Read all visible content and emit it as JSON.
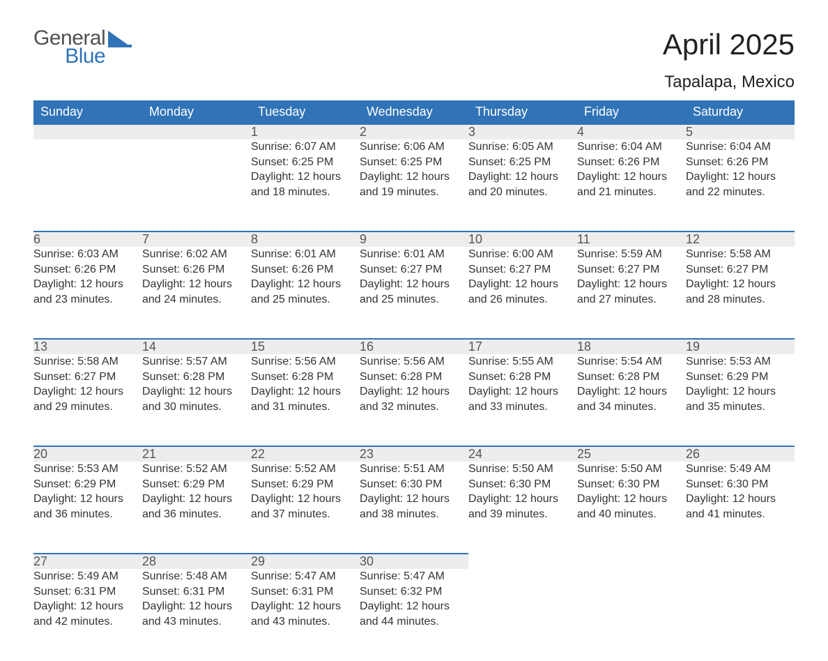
{
  "brand": {
    "name_top": "General",
    "name_bottom": "Blue",
    "text_color": "#505050",
    "accent_color": "#3073b7"
  },
  "title": "April 2025",
  "location": "Tapalapa, Mexico",
  "weekday_headers": [
    "Sunday",
    "Monday",
    "Tuesday",
    "Wednesday",
    "Thursday",
    "Friday",
    "Saturday"
  ],
  "style": {
    "header_bg": "#3073b7",
    "header_text": "#ffffff",
    "daynum_bg": "#ededed",
    "daynum_border": "#3073b7",
    "daynum_text": "#555555",
    "body_text": "#333333",
    "page_bg": "#ffffff",
    "title_fontsize": 42,
    "location_fontsize": 24,
    "header_fontsize": 18,
    "daynum_fontsize": 18,
    "details_fontsize": 16
  },
  "weeks": [
    [
      {
        "day": "",
        "sunrise": "",
        "sunset": "",
        "daylight": ""
      },
      {
        "day": "",
        "sunrise": "",
        "sunset": "",
        "daylight": ""
      },
      {
        "day": "1",
        "sunrise": "Sunrise: 6:07 AM",
        "sunset": "Sunset: 6:25 PM",
        "daylight": "Daylight: 12 hours and 18 minutes."
      },
      {
        "day": "2",
        "sunrise": "Sunrise: 6:06 AM",
        "sunset": "Sunset: 6:25 PM",
        "daylight": "Daylight: 12 hours and 19 minutes."
      },
      {
        "day": "3",
        "sunrise": "Sunrise: 6:05 AM",
        "sunset": "Sunset: 6:25 PM",
        "daylight": "Daylight: 12 hours and 20 minutes."
      },
      {
        "day": "4",
        "sunrise": "Sunrise: 6:04 AM",
        "sunset": "Sunset: 6:26 PM",
        "daylight": "Daylight: 12 hours and 21 minutes."
      },
      {
        "day": "5",
        "sunrise": "Sunrise: 6:04 AM",
        "sunset": "Sunset: 6:26 PM",
        "daylight": "Daylight: 12 hours and 22 minutes."
      }
    ],
    [
      {
        "day": "6",
        "sunrise": "Sunrise: 6:03 AM",
        "sunset": "Sunset: 6:26 PM",
        "daylight": "Daylight: 12 hours and 23 minutes."
      },
      {
        "day": "7",
        "sunrise": "Sunrise: 6:02 AM",
        "sunset": "Sunset: 6:26 PM",
        "daylight": "Daylight: 12 hours and 24 minutes."
      },
      {
        "day": "8",
        "sunrise": "Sunrise: 6:01 AM",
        "sunset": "Sunset: 6:26 PM",
        "daylight": "Daylight: 12 hours and 25 minutes."
      },
      {
        "day": "9",
        "sunrise": "Sunrise: 6:01 AM",
        "sunset": "Sunset: 6:27 PM",
        "daylight": "Daylight: 12 hours and 25 minutes."
      },
      {
        "day": "10",
        "sunrise": "Sunrise: 6:00 AM",
        "sunset": "Sunset: 6:27 PM",
        "daylight": "Daylight: 12 hours and 26 minutes."
      },
      {
        "day": "11",
        "sunrise": "Sunrise: 5:59 AM",
        "sunset": "Sunset: 6:27 PM",
        "daylight": "Daylight: 12 hours and 27 minutes."
      },
      {
        "day": "12",
        "sunrise": "Sunrise: 5:58 AM",
        "sunset": "Sunset: 6:27 PM",
        "daylight": "Daylight: 12 hours and 28 minutes."
      }
    ],
    [
      {
        "day": "13",
        "sunrise": "Sunrise: 5:58 AM",
        "sunset": "Sunset: 6:27 PM",
        "daylight": "Daylight: 12 hours and 29 minutes."
      },
      {
        "day": "14",
        "sunrise": "Sunrise: 5:57 AM",
        "sunset": "Sunset: 6:28 PM",
        "daylight": "Daylight: 12 hours and 30 minutes."
      },
      {
        "day": "15",
        "sunrise": "Sunrise: 5:56 AM",
        "sunset": "Sunset: 6:28 PM",
        "daylight": "Daylight: 12 hours and 31 minutes."
      },
      {
        "day": "16",
        "sunrise": "Sunrise: 5:56 AM",
        "sunset": "Sunset: 6:28 PM",
        "daylight": "Daylight: 12 hours and 32 minutes."
      },
      {
        "day": "17",
        "sunrise": "Sunrise: 5:55 AM",
        "sunset": "Sunset: 6:28 PM",
        "daylight": "Daylight: 12 hours and 33 minutes."
      },
      {
        "day": "18",
        "sunrise": "Sunrise: 5:54 AM",
        "sunset": "Sunset: 6:28 PM",
        "daylight": "Daylight: 12 hours and 34 minutes."
      },
      {
        "day": "19",
        "sunrise": "Sunrise: 5:53 AM",
        "sunset": "Sunset: 6:29 PM",
        "daylight": "Daylight: 12 hours and 35 minutes."
      }
    ],
    [
      {
        "day": "20",
        "sunrise": "Sunrise: 5:53 AM",
        "sunset": "Sunset: 6:29 PM",
        "daylight": "Daylight: 12 hours and 36 minutes."
      },
      {
        "day": "21",
        "sunrise": "Sunrise: 5:52 AM",
        "sunset": "Sunset: 6:29 PM",
        "daylight": "Daylight: 12 hours and 36 minutes."
      },
      {
        "day": "22",
        "sunrise": "Sunrise: 5:52 AM",
        "sunset": "Sunset: 6:29 PM",
        "daylight": "Daylight: 12 hours and 37 minutes."
      },
      {
        "day": "23",
        "sunrise": "Sunrise: 5:51 AM",
        "sunset": "Sunset: 6:30 PM",
        "daylight": "Daylight: 12 hours and 38 minutes."
      },
      {
        "day": "24",
        "sunrise": "Sunrise: 5:50 AM",
        "sunset": "Sunset: 6:30 PM",
        "daylight": "Daylight: 12 hours and 39 minutes."
      },
      {
        "day": "25",
        "sunrise": "Sunrise: 5:50 AM",
        "sunset": "Sunset: 6:30 PM",
        "daylight": "Daylight: 12 hours and 40 minutes."
      },
      {
        "day": "26",
        "sunrise": "Sunrise: 5:49 AM",
        "sunset": "Sunset: 6:30 PM",
        "daylight": "Daylight: 12 hours and 41 minutes."
      }
    ],
    [
      {
        "day": "27",
        "sunrise": "Sunrise: 5:49 AM",
        "sunset": "Sunset: 6:31 PM",
        "daylight": "Daylight: 12 hours and 42 minutes."
      },
      {
        "day": "28",
        "sunrise": "Sunrise: 5:48 AM",
        "sunset": "Sunset: 6:31 PM",
        "daylight": "Daylight: 12 hours and 43 minutes."
      },
      {
        "day": "29",
        "sunrise": "Sunrise: 5:47 AM",
        "sunset": "Sunset: 6:31 PM",
        "daylight": "Daylight: 12 hours and 43 minutes."
      },
      {
        "day": "30",
        "sunrise": "Sunrise: 5:47 AM",
        "sunset": "Sunset: 6:32 PM",
        "daylight": "Daylight: 12 hours and 44 minutes."
      },
      {
        "day": "",
        "sunrise": "",
        "sunset": "",
        "daylight": ""
      },
      {
        "day": "",
        "sunrise": "",
        "sunset": "",
        "daylight": ""
      },
      {
        "day": "",
        "sunrise": "",
        "sunset": "",
        "daylight": ""
      }
    ]
  ]
}
